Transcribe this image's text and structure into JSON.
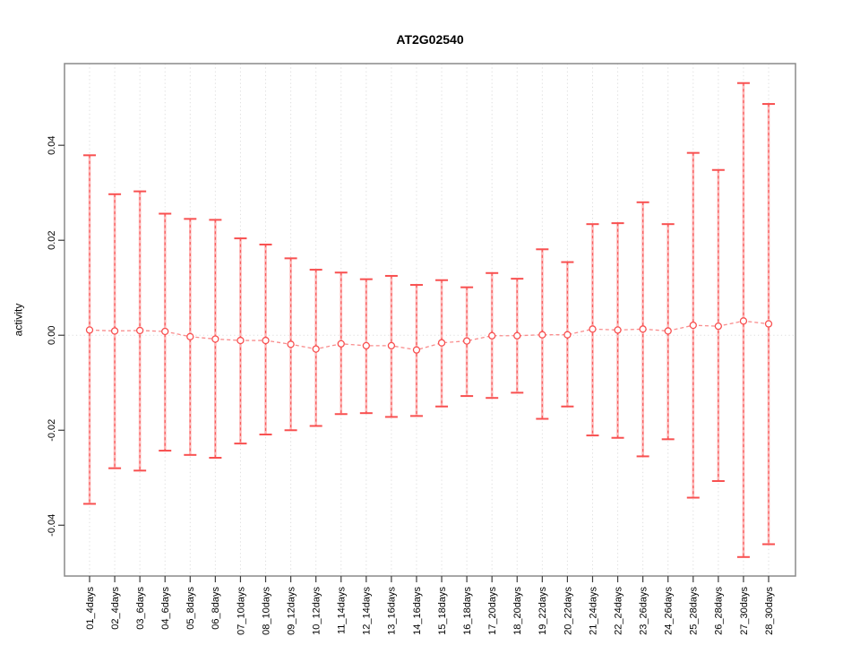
{
  "chart_data": {
    "type": "scatter",
    "title": "AT2G02540",
    "xlabel": "",
    "ylabel": "activity",
    "legend": "none",
    "grid": {
      "vertical_dotted_per_category": true,
      "horizontal_dotted_zero_line": true
    },
    "ylim": [
      -0.0507,
      0.0572
    ],
    "yticks": [
      -0.04,
      -0.02,
      0.0,
      0.02,
      0.04
    ],
    "ytick_labels": [
      "-0.04",
      "-0.02",
      "0.00",
      "0.02",
      "0.04"
    ],
    "categories": [
      "01_4days",
      "02_4days",
      "03_6days",
      "04_6days",
      "05_8days",
      "06_8days",
      "07_10days",
      "08_10days",
      "09_12days",
      "10_12days",
      "11_14days",
      "12_14days",
      "13_16days",
      "14_16days",
      "15_18days",
      "16_18days",
      "17_20days",
      "18_20days",
      "19_22days",
      "20_22days",
      "21_24days",
      "22_24days",
      "23_26days",
      "24_26days",
      "25_28days",
      "26_28days",
      "27_30days",
      "28_30days"
    ],
    "series": [
      {
        "name": "activity",
        "values": [
          0.0011,
          0.0009,
          0.001,
          0.0008,
          -0.0003,
          -0.0008,
          -0.0011,
          -0.0011,
          -0.0019,
          -0.0029,
          -0.0018,
          -0.0022,
          -0.0022,
          -0.0031,
          -0.0016,
          -0.0012,
          -0.0001,
          -0.0001,
          0.0001,
          0.0001,
          0.0013,
          0.0011,
          0.0013,
          0.0009,
          0.0021,
          0.0019,
          0.003,
          0.0024
        ],
        "error_high": [
          0.0379,
          0.0297,
          0.0303,
          0.0256,
          0.0245,
          0.0243,
          0.0204,
          0.0191,
          0.0162,
          0.0138,
          0.0132,
          0.0118,
          0.0125,
          0.0106,
          0.0116,
          0.0101,
          0.0131,
          0.0119,
          0.0181,
          0.0154,
          0.0234,
          0.0236,
          0.028,
          0.0234,
          0.0384,
          0.0348,
          0.0531,
          0.0487
        ],
        "error_low": [
          -0.0355,
          -0.028,
          -0.0285,
          -0.0243,
          -0.0252,
          -0.0258,
          -0.0228,
          -0.0209,
          -0.02,
          -0.0191,
          -0.0166,
          -0.0164,
          -0.0172,
          -0.017,
          -0.015,
          -0.0128,
          -0.0132,
          -0.0121,
          -0.0176,
          -0.015,
          -0.0211,
          -0.0216,
          -0.0255,
          -0.0219,
          -0.0342,
          -0.0307,
          -0.0467,
          -0.044
        ]
      }
    ],
    "colors": {
      "error_bar_core": "#f85b5b",
      "error_bar_halo": "#fdb9b9",
      "cap": "#f85050",
      "point_stroke": "#f85050",
      "point_fill": "#ffffff",
      "connector": "#f98d8d",
      "grid": "#dedede",
      "border": "#8a8a8a",
      "tick": "#3c3c3c",
      "text": "#000000"
    }
  }
}
